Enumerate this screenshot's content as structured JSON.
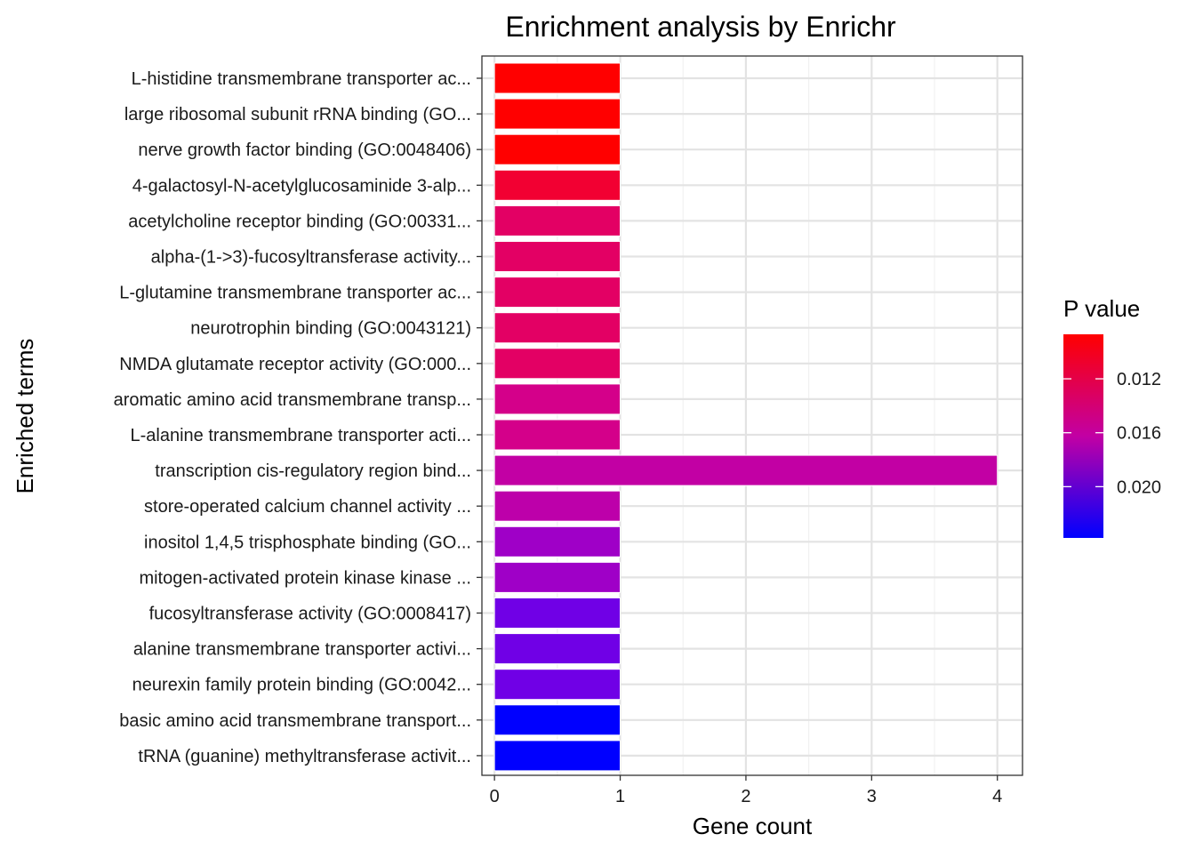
{
  "chart_data": {
    "type": "bar",
    "orientation": "horizontal",
    "title": "Enrichment analysis by Enrichr",
    "xlabel": "Gene count",
    "ylabel": "Enriched terms",
    "xlim": [
      -0.1,
      4.2
    ],
    "x_ticks": [
      0,
      1,
      2,
      3,
      4
    ],
    "grid": true,
    "categories": [
      "L-histidine transmembrane transporter ac...",
      "large ribosomal subunit rRNA binding (GO...",
      "nerve growth factor binding (GO:0048406)",
      "4-galactosyl-N-acetylglucosaminide 3-alp...",
      "acetylcholine receptor binding (GO:00331...",
      "alpha-(1->3)-fucosyltransferase activity...",
      "L-glutamine transmembrane transporter ac...",
      "neurotrophin binding (GO:0043121)",
      "NMDA glutamate receptor activity (GO:000...",
      "aromatic amino acid transmembrane transp...",
      "L-alanine transmembrane transporter acti...",
      "transcription cis-regulatory region bind...",
      "store-operated calcium channel activity ...",
      "inositol 1,4,5 trisphosphate binding (GO...",
      "mitogen-activated protein kinase kinase ...",
      "fucosyltransferase activity (GO:0008417)",
      "alanine transmembrane transporter activi...",
      "neurexin family protein binding (GO:0042...",
      "basic amino acid transmembrane transport...",
      "tRNA (guanine) methyltransferase activit..."
    ],
    "values": [
      1,
      1,
      1,
      1,
      1,
      1,
      1,
      1,
      1,
      1,
      1,
      4,
      1,
      1,
      1,
      1,
      1,
      1,
      1,
      1
    ],
    "p_values": [
      0.0087,
      0.0087,
      0.0087,
      0.011,
      0.0126,
      0.0126,
      0.0126,
      0.0126,
      0.0126,
      0.014,
      0.014,
      0.016,
      0.0165,
      0.0185,
      0.0185,
      0.021,
      0.021,
      0.021,
      0.0238,
      0.0238
    ],
    "bar_colors": [
      "#ff0000",
      "#ff0000",
      "#ff0000",
      "#f20032",
      "#e30064",
      "#e30064",
      "#e30064",
      "#e30064",
      "#e30064",
      "#d4008a",
      "#d4008a",
      "#c200a4",
      "#bd00aa",
      "#9f00c7",
      "#9f00c7",
      "#7000e6",
      "#7000e6",
      "#7000e6",
      "#0000ff",
      "#0000ff"
    ],
    "legend": {
      "title": "P value",
      "placement": "right",
      "tick_values": [
        0.012,
        0.016,
        0.02
      ],
      "tick_labels": [
        "0.012",
        "0.016",
        "0.020"
      ],
      "low_value": 0.0087,
      "high_value": 0.0238,
      "low_color": "#ff0000",
      "high_color": "#0000ff"
    }
  }
}
